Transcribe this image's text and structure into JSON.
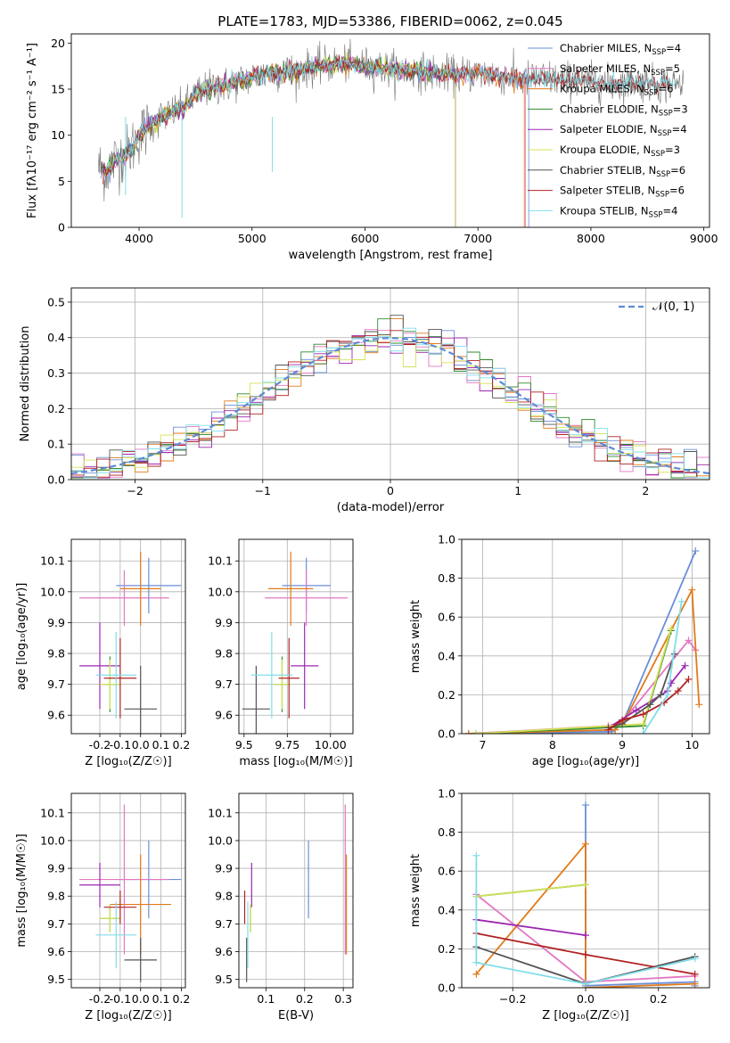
{
  "chart_data": [
    {
      "type": "line",
      "title": "PLATE=1783, MJD=53386, FIBERID=0062, z=0.045",
      "xlabel": "wavelength [Angstrom, rest frame]",
      "ylabel": "Flux [fλ10⁻¹⁷ erg cm⁻² s⁻¹ A⁻¹]",
      "xlim": [
        3400,
        9050
      ],
      "ylim": [
        0,
        21
      ],
      "xticks": [
        4000,
        5000,
        6000,
        7000,
        8000,
        9000
      ],
      "yticks": [
        0,
        5,
        10,
        15,
        20
      ],
      "grid": false,
      "legend_position": "top-right",
      "observed": {
        "x": [
          3650,
          3700,
          3800,
          3900,
          4000,
          4100,
          4200,
          4300,
          4400,
          4500,
          4600,
          4800,
          5000,
          5200,
          5400,
          5600,
          5800,
          6000,
          6200,
          6400,
          6600,
          6800,
          7000,
          7200,
          7400,
          7600,
          7800,
          8000,
          8200,
          8400,
          8600,
          8800
        ],
        "y": [
          6.5,
          6.0,
          7.5,
          8.0,
          10.0,
          11.0,
          12.0,
          12.5,
          13.0,
          14.5,
          15.0,
          15.5,
          16.3,
          16.8,
          17.0,
          17.5,
          17.8,
          17.5,
          17.2,
          17.0,
          16.8,
          16.5,
          16.8,
          16.5,
          16.0,
          16.2,
          16.0,
          15.8,
          15.5,
          15.8,
          15.5,
          15.5
        ]
      },
      "series": [
        {
          "name": "Chabrier MILES, N_SSP=4",
          "legend_main": "Chabrier MILES, N",
          "legend_sub": "SSP",
          "legend_tail": "=4",
          "color": "#6a8fd8",
          "x_end": 7450
        },
        {
          "name": "Salpeter MILES, N_SSP=5",
          "legend_main": "Salpeter MILES, N",
          "legend_sub": "SSP",
          "legend_tail": "=5",
          "color": "#e377c2",
          "x_end": 7420
        },
        {
          "name": "Kroupa MILES, N_SSP=6",
          "legend_main": "Kroupa MILES, N",
          "legend_sub": "SSP",
          "legend_tail": "=6",
          "color": "#e07b1a",
          "x_end": 7410
        },
        {
          "name": "Chabrier ELODIE, N_SSP=3",
          "legend_main": "Chabrier ELODIE, N",
          "legend_sub": "SSP",
          "legend_tail": "=3",
          "color": "#2e8b2e",
          "x_end": 6800
        },
        {
          "name": "Salpeter ELODIE, N_SSP=4",
          "legend_main": "Salpeter ELODIE, N",
          "legend_sub": "SSP",
          "legend_tail": "=4",
          "color": "#9c27b0",
          "x_end": 6800
        },
        {
          "name": "Kroupa ELODIE, N_SSP=3",
          "legend_main": "Kroupa ELODIE, N",
          "legend_sub": "SSP",
          "legend_tail": "=3",
          "color": "#d4e157",
          "x_end": 6800
        },
        {
          "name": "Chabrier STELIB, N_SSP=6",
          "legend_main": "Chabrier STELIB, N",
          "legend_sub": "SSP",
          "legend_tail": "=6",
          "color": "#555555",
          "x_end": 8700
        },
        {
          "name": "Salpeter STELIB, N_SSP=6",
          "legend_main": "Salpeter STELIB, N",
          "legend_sub": "SSP",
          "legend_tail": "=6",
          "color": "#b22222",
          "x_end": 8700
        },
        {
          "name": "Kroupa STELIB, N_SSP=4",
          "legend_main": "Kroupa STELIB, N",
          "legend_sub": "SSP",
          "legend_tail": "=4",
          "color": "#80deea",
          "x_end": 8750
        }
      ]
    },
    {
      "type": "line",
      "title": "",
      "xlabel": "(data-model)/error",
      "ylabel": "Normed distribution",
      "xlim": [
        -2.5,
        2.5
      ],
      "ylim": [
        0,
        0.54
      ],
      "xticks": [
        -2,
        -1,
        0,
        1,
        2
      ],
      "yticks": [
        0.0,
        0.1,
        0.2,
        0.3,
        0.4,
        0.5
      ],
      "grid": true,
      "legend_position": "top-right",
      "reference": {
        "name": "𝒩(0, 1)",
        "mean": 0,
        "sd": 1,
        "color": "#5b8bd6"
      },
      "histogram_bin_width": 0.1
    },
    {
      "type": "scatter",
      "title": "",
      "xlabel": "Z [log₁₀(Z/Z☉)]",
      "ylabel": "age  [log₁₀(age/yr)]",
      "xlim": [
        -0.34,
        0.22
      ],
      "ylim": [
        9.54,
        10.17
      ],
      "xticks": [
        -0.2,
        -0.1,
        0.0,
        0.1,
        0.2
      ],
      "yticks": [
        9.6,
        9.7,
        9.8,
        9.9,
        10.0,
        10.1
      ],
      "grid": true,
      "points": [
        {
          "series": "Chabrier MILES",
          "color": "#6a8fd8",
          "x": 0.04,
          "y": 10.02,
          "xerr": 0.16,
          "yerr": 0.09
        },
        {
          "series": "Salpeter MILES",
          "color": "#e377c2",
          "x": -0.08,
          "y": 9.98,
          "xerr": 0.22,
          "yerr": 0.09
        },
        {
          "series": "Kroupa MILES",
          "color": "#e07b1a",
          "x": 0.0,
          "y": 10.01,
          "xerr": 0.1,
          "yerr": 0.12
        },
        {
          "series": "Chabrier ELODIE",
          "color": "#2e8b2e",
          "x": -0.15,
          "y": 9.7,
          "xerr": 0.05,
          "yerr": 0.09
        },
        {
          "series": "Salpeter ELODIE",
          "color": "#9c27b0",
          "x": -0.2,
          "y": 9.76,
          "xerr": 0.1,
          "yerr": 0.14
        },
        {
          "series": "Kroupa ELODIE",
          "color": "#d4e157",
          "x": -0.15,
          "y": 9.7,
          "xerr": 0.05,
          "yerr": 0.08
        },
        {
          "series": "Chabrier STELIB",
          "color": "#555555",
          "x": 0.0,
          "y": 9.62,
          "xerr": 0.08,
          "yerr": 0.14
        },
        {
          "series": "Salpeter STELIB",
          "color": "#b22222",
          "x": -0.1,
          "y": 9.72,
          "xerr": 0.08,
          "yerr": 0.13
        },
        {
          "series": "Kroupa STELIB",
          "color": "#80deea",
          "x": -0.12,
          "y": 9.73,
          "xerr": 0.1,
          "yerr": 0.14
        }
      ]
    },
    {
      "type": "scatter",
      "title": "",
      "xlabel": "mass [log₁₀(M/M☉)]",
      "ylabel": "",
      "xlim": [
        9.47,
        10.13
      ],
      "ylim": [
        9.54,
        10.17
      ],
      "xticks": [
        9.5,
        9.75,
        10.0
      ],
      "yticks": [
        9.6,
        9.7,
        9.8,
        9.9,
        10.0,
        10.1
      ],
      "grid": true,
      "points": [
        {
          "series": "Chabrier MILES",
          "color": "#6a8fd8",
          "x": 9.86,
          "y": 10.02,
          "xerr": 0.14,
          "yerr": 0.09
        },
        {
          "series": "Salpeter MILES",
          "color": "#e377c2",
          "x": 9.86,
          "y": 9.98,
          "xerr": 0.24,
          "yerr": 0.09
        },
        {
          "series": "Kroupa MILES",
          "color": "#e07b1a",
          "x": 9.77,
          "y": 10.01,
          "xerr": 0.13,
          "yerr": 0.12
        },
        {
          "series": "Chabrier ELODIE",
          "color": "#2e8b2e",
          "x": 9.72,
          "y": 9.7,
          "xerr": 0.05,
          "yerr": 0.09
        },
        {
          "series": "Salpeter ELODIE",
          "color": "#9c27b0",
          "x": 9.85,
          "y": 9.76,
          "xerr": 0.08,
          "yerr": 0.14
        },
        {
          "series": "Kroupa ELODIE",
          "color": "#d4e157",
          "x": 9.72,
          "y": 9.7,
          "xerr": 0.05,
          "yerr": 0.08
        },
        {
          "series": "Chabrier STELIB",
          "color": "#555555",
          "x": 9.57,
          "y": 9.62,
          "xerr": 0.08,
          "yerr": 0.14
        },
        {
          "series": "Salpeter STELIB",
          "color": "#b22222",
          "x": 9.76,
          "y": 9.72,
          "xerr": 0.06,
          "yerr": 0.13
        },
        {
          "series": "Kroupa STELIB",
          "color": "#80deea",
          "x": 9.66,
          "y": 9.73,
          "xerr": 0.12,
          "yerr": 0.14
        }
      ]
    },
    {
      "type": "line",
      "title": "",
      "xlabel": "age  [log₁₀(age/yr)]",
      "ylabel": "mass weight",
      "xlim": [
        6.7,
        10.25
      ],
      "ylim": [
        0,
        1.0
      ],
      "xticks": [
        7,
        8,
        9,
        10
      ],
      "yticks": [
        0.0,
        0.2,
        0.4,
        0.6,
        0.8,
        1.0
      ],
      "grid": true,
      "series": [
        {
          "name": "Chabrier MILES",
          "color": "#6a8fd8",
          "x": [
            6.8,
            8.85,
            9.0,
            10.05
          ],
          "y": [
            0.0,
            0.01,
            0.05,
            0.94
          ]
        },
        {
          "name": "Salpeter MILES",
          "color": "#e377c2",
          "x": [
            6.8,
            8.8,
            9.0,
            9.95,
            10.05
          ],
          "y": [
            0.0,
            0.04,
            0.06,
            0.48,
            0.43
          ]
        },
        {
          "name": "Kroupa MILES",
          "color": "#e07b1a",
          "x": [
            6.8,
            8.9,
            9.05,
            10.0,
            10.1
          ],
          "y": [
            0.0,
            0.02,
            0.08,
            0.74,
            0.15
          ]
        },
        {
          "name": "Chabrier ELODIE",
          "color": "#2e8b2e",
          "x": [
            6.9,
            9.3,
            9.7
          ],
          "y": [
            0.0,
            0.04,
            0.53
          ]
        },
        {
          "name": "Salpeter ELODIE",
          "color": "#9c27b0",
          "x": [
            8.8,
            9.2,
            9.65,
            9.7,
            9.9
          ],
          "y": [
            0.03,
            0.12,
            0.22,
            0.26,
            0.35
          ]
        },
        {
          "name": "Kroupa ELODIE",
          "color": "#d4e157",
          "x": [
            6.9,
            9.3,
            9.7
          ],
          "y": [
            0.0,
            0.05,
            0.54
          ]
        },
        {
          "name": "Chabrier STELIB",
          "color": "#555555",
          "x": [
            8.8,
            9.0,
            9.4,
            9.55,
            9.75
          ],
          "y": [
            0.03,
            0.05,
            0.15,
            0.2,
            0.41
          ]
        },
        {
          "name": "Salpeter STELIB",
          "color": "#b22222",
          "x": [
            8.8,
            9.0,
            9.3,
            9.6,
            9.8,
            9.95
          ],
          "y": [
            0.02,
            0.07,
            0.1,
            0.16,
            0.22,
            0.28
          ]
        },
        {
          "name": "Kroupa STELIB",
          "color": "#80deea",
          "x": [
            9.3,
            9.65,
            9.85
          ],
          "y": [
            0.0,
            0.2,
            0.68
          ]
        }
      ]
    },
    {
      "type": "scatter",
      "title": "",
      "xlabel": "Z [log₁₀(Z/Z☉)]",
      "ylabel": "mass [log₁₀(M/M☉)]",
      "xlim": [
        -0.34,
        0.22
      ],
      "ylim": [
        9.47,
        10.17
      ],
      "xticks": [
        -0.2,
        -0.1,
        0.0,
        0.1,
        0.2
      ],
      "yticks": [
        9.5,
        9.6,
        9.7,
        9.8,
        9.9,
        10.0,
        10.1
      ],
      "grid": true,
      "points": [
        {
          "series": "Chabrier MILES",
          "color": "#6a8fd8",
          "x": 0.04,
          "y": 9.86,
          "xerr": 0.16,
          "yerr": 0.14
        },
        {
          "series": "Salpeter MILES",
          "color": "#e377c2",
          "x": -0.08,
          "y": 9.86,
          "xerr": 0.22,
          "yerr": 0.27
        },
        {
          "series": "Kroupa MILES",
          "color": "#e07b1a",
          "x": 0.0,
          "y": 9.77,
          "xerr": 0.15,
          "yerr": 0.18
        },
        {
          "series": "Chabrier ELODIE",
          "color": "#2e8b2e",
          "x": -0.15,
          "y": 9.72,
          "xerr": 0.05,
          "yerr": 0.05
        },
        {
          "series": "Salpeter ELODIE",
          "color": "#9c27b0",
          "x": -0.2,
          "y": 9.84,
          "xerr": 0.1,
          "yerr": 0.08
        },
        {
          "series": "Kroupa ELODIE",
          "color": "#d4e157",
          "x": -0.15,
          "y": 9.72,
          "xerr": 0.05,
          "yerr": 0.05
        },
        {
          "series": "Chabrier STELIB",
          "color": "#555555",
          "x": 0.0,
          "y": 9.57,
          "xerr": 0.08,
          "yerr": 0.08
        },
        {
          "series": "Salpeter STELIB",
          "color": "#b22222",
          "x": -0.1,
          "y": 9.76,
          "xerr": 0.08,
          "yerr": 0.06
        },
        {
          "series": "Kroupa STELIB",
          "color": "#80deea",
          "x": -0.12,
          "y": 9.66,
          "xerr": 0.1,
          "yerr": 0.12
        }
      ]
    },
    {
      "type": "scatter",
      "title": "",
      "xlabel": "E(B-V)",
      "ylabel": "",
      "xlim": [
        0.03,
        0.325
      ],
      "ylim": [
        9.47,
        10.17
      ],
      "xticks": [
        0.1,
        0.2,
        0.3
      ],
      "yticks": [
        9.5,
        9.6,
        9.7,
        9.8,
        9.9,
        10.0,
        10.1
      ],
      "grid": true,
      "points": [
        {
          "series": "Chabrier MILES",
          "color": "#6a8fd8",
          "x": 0.21,
          "y": 9.86,
          "yerr": 0.14
        },
        {
          "series": "Salpeter MILES",
          "color": "#e377c2",
          "x": 0.305,
          "y": 9.86,
          "yerr": 0.27
        },
        {
          "series": "Kroupa MILES",
          "color": "#e07b1a",
          "x": 0.308,
          "y": 9.77,
          "yerr": 0.18
        },
        {
          "series": "Chabrier ELODIE",
          "color": "#2e8b2e",
          "x": 0.06,
          "y": 9.72,
          "yerr": 0.05
        },
        {
          "series": "Salpeter ELODIE",
          "color": "#9c27b0",
          "x": 0.063,
          "y": 9.84,
          "yerr": 0.08
        },
        {
          "series": "Kroupa ELODIE",
          "color": "#d4e157",
          "x": 0.06,
          "y": 9.72,
          "yerr": 0.05
        },
        {
          "series": "Chabrier STELIB",
          "color": "#555555",
          "x": 0.05,
          "y": 9.57,
          "yerr": 0.08
        },
        {
          "series": "Salpeter STELIB",
          "color": "#b22222",
          "x": 0.045,
          "y": 9.76,
          "yerr": 0.06
        },
        {
          "series": "Kroupa STELIB",
          "color": "#80deea",
          "x": 0.053,
          "y": 9.66,
          "yerr": 0.12
        }
      ]
    },
    {
      "type": "line",
      "title": "",
      "xlabel": "Z [log₁₀(Z/Z☉)]",
      "ylabel": "mass weight",
      "xlim": [
        -0.34,
        0.34
      ],
      "ylim": [
        0,
        1.0
      ],
      "xticks": [
        -0.2,
        0.0,
        0.2
      ],
      "yticks": [
        0.0,
        0.2,
        0.4,
        0.6,
        0.8,
        1.0
      ],
      "grid": true,
      "series": [
        {
          "name": "Chabrier MILES",
          "color": "#6a8fd8",
          "x": [
            0.0,
            0.0,
            0.3,
            0.3
          ],
          "y": [
            0.94,
            0.01,
            0.03,
            0.01
          ]
        },
        {
          "name": "Salpeter MILES",
          "color": "#e377c2",
          "x": [
            -0.3,
            0.0,
            0.3
          ],
          "y": [
            0.48,
            0.03,
            0.06
          ]
        },
        {
          "name": "Kroupa MILES",
          "color": "#e07b1a",
          "x": [
            -0.3,
            0.0,
            0.0,
            0.3
          ],
          "y": [
            0.07,
            0.74,
            0.0,
            0.02
          ]
        },
        {
          "name": "Chabrier ELODIE",
          "color": "#2e8b2e",
          "x": [
            -0.3,
            0.0
          ],
          "y": [
            0.47,
            0.53
          ]
        },
        {
          "name": "Salpeter ELODIE",
          "color": "#9c27b0",
          "x": [
            -0.3,
            0.0
          ],
          "y": [
            0.35,
            0.27
          ]
        },
        {
          "name": "Kroupa ELODIE",
          "color": "#d4e157",
          "x": [
            -0.3,
            0.0
          ],
          "y": [
            0.47,
            0.53
          ]
        },
        {
          "name": "Chabrier STELIB",
          "color": "#555555",
          "x": [
            -0.3,
            0.0,
            0.3
          ],
          "y": [
            0.21,
            0.02,
            0.16
          ]
        },
        {
          "name": "Salpeter STELIB",
          "color": "#b22222",
          "x": [
            -0.3,
            0.0,
            0.3
          ],
          "y": [
            0.28,
            0.17,
            0.07
          ]
        },
        {
          "name": "Kroupa STELIB",
          "color": "#80deea",
          "x": [
            -0.3,
            -0.3,
            0.0,
            0.3
          ],
          "y": [
            0.68,
            0.13,
            0.02,
            0.15
          ]
        }
      ]
    }
  ]
}
